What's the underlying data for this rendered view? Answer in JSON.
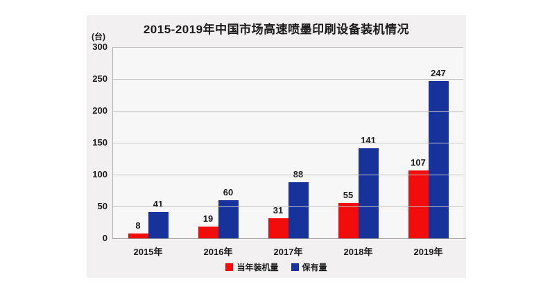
{
  "chart_data": {
    "type": "bar",
    "title": "2015-2019年中国市场高速喷墨印刷设备装机情况",
    "unit_label": "(台)",
    "categories": [
      "2015年",
      "2016年",
      "2017年",
      "2018年",
      "2019年"
    ],
    "series": [
      {
        "name": "当年装机量",
        "color": "#f20c0c",
        "values": [
          8,
          19,
          31,
          55,
          107
        ]
      },
      {
        "name": "保有量",
        "color": "#17339b",
        "values": [
          41,
          60,
          88,
          141,
          247
        ]
      }
    ],
    "ylim": [
      0,
      300
    ],
    "yticks": [
      0,
      50,
      100,
      150,
      200,
      250,
      300
    ],
    "grid": true,
    "legend_position": "bottom",
    "colors": {
      "panel_background": "#f2f0f1",
      "plot_background": "#f8f7f8",
      "gridline": "#c4c4c4",
      "text": "#1b1b1b"
    }
  }
}
